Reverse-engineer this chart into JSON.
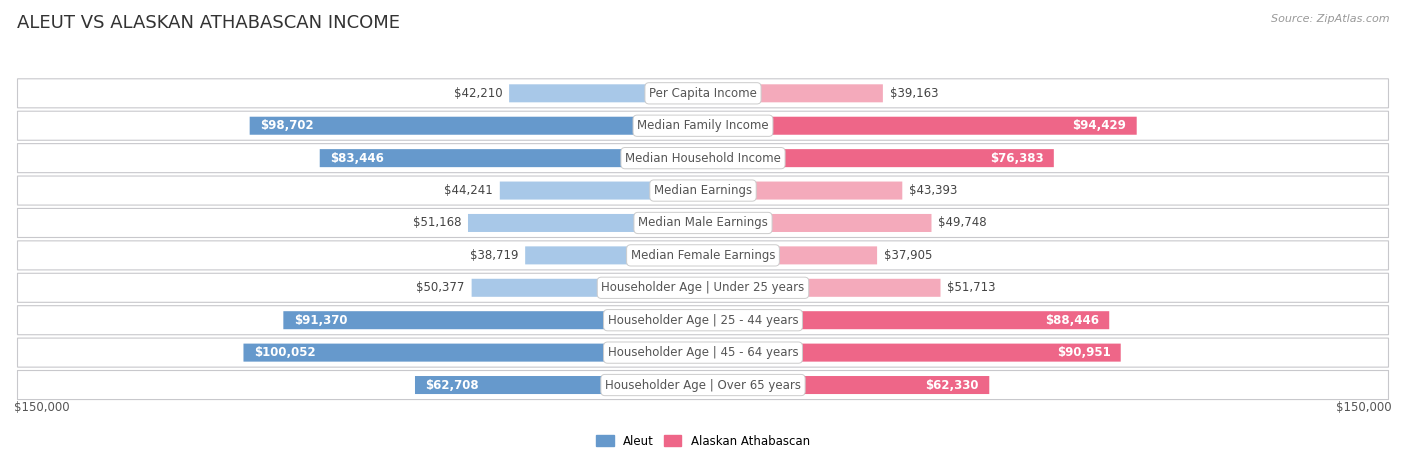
{
  "title": "ALEUT VS ALASKAN ATHABASCAN INCOME",
  "source": "Source: ZipAtlas.com",
  "categories": [
    "Per Capita Income",
    "Median Family Income",
    "Median Household Income",
    "Median Earnings",
    "Median Male Earnings",
    "Median Female Earnings",
    "Householder Age | Under 25 years",
    "Householder Age | 25 - 44 years",
    "Householder Age | 45 - 64 years",
    "Householder Age | Over 65 years"
  ],
  "aleut_values": [
    42210,
    98702,
    83446,
    44241,
    51168,
    38719,
    50377,
    91370,
    100052,
    62708
  ],
  "athabascan_values": [
    39163,
    94429,
    76383,
    43393,
    49748,
    37905,
    51713,
    88446,
    90951,
    62330
  ],
  "aleut_labels": [
    "$42,210",
    "$98,702",
    "$83,446",
    "$44,241",
    "$51,168",
    "$38,719",
    "$50,377",
    "$91,370",
    "$100,052",
    "$62,708"
  ],
  "athabascan_labels": [
    "$39,163",
    "$94,429",
    "$76,383",
    "$43,393",
    "$49,748",
    "$37,905",
    "$51,713",
    "$88,446",
    "$90,951",
    "$62,330"
  ],
  "aleut_color_light": "#a8c8e8",
  "aleut_color_dark": "#6699cc",
  "athabascan_color_light": "#f4aabb",
  "athabascan_color_dark": "#ee6688",
  "xlim": 150000,
  "bg_color": "#ffffff",
  "row_bg": "#f5f5f7",
  "row_border": "#cccccc",
  "title_fontsize": 13,
  "label_fontsize": 8.5,
  "category_fontsize": 8.5,
  "axis_label_fontsize": 8.5,
  "legend_aleut": "Aleut",
  "legend_athabascan": "Alaskan Athabascan",
  "large_threshold": 60000,
  "cat_box_color": "#ffffff",
  "cat_text_color": "#555555",
  "dark_label_color": "#444444"
}
